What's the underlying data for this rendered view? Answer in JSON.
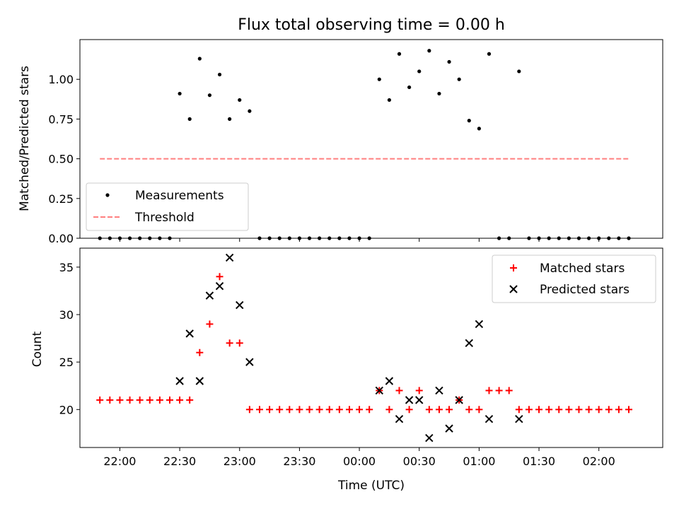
{
  "chart_data": [
    {
      "type": "scatter",
      "title": "Flux total observing time = 0.00 h",
      "xlabel": "",
      "ylabel": "Matched/Predicted stars",
      "ylim": [
        0.0,
        1.25
      ],
      "yticks": [
        0.0,
        0.25,
        0.5,
        0.75,
        1.0
      ],
      "ytick_labels": [
        "0.00",
        "0.25",
        "0.50",
        "0.75",
        "1.00"
      ],
      "legend_position": "lower-left",
      "threshold": {
        "name": "Threshold",
        "value": 0.5,
        "color": "#ff7f7f",
        "x_start": "21:50",
        "x_end": "02:15"
      },
      "series": [
        {
          "name": "Measurements",
          "color": "#000000",
          "x": [
            "21:50",
            "21:55",
            "22:00",
            "22:05",
            "22:10",
            "22:15",
            "22:20",
            "22:25",
            "22:30",
            "22:35",
            "22:40",
            "22:45",
            "22:50",
            "22:55",
            "23:00",
            "23:05",
            "23:10",
            "23:15",
            "23:20",
            "23:25",
            "23:30",
            "23:35",
            "23:40",
            "23:45",
            "23:50",
            "23:55",
            "00:00",
            "00:05",
            "00:10",
            "00:15",
            "00:20",
            "00:25",
            "00:30",
            "00:35",
            "00:40",
            "00:45",
            "00:50",
            "00:55",
            "01:00",
            "01:05",
            "01:10",
            "01:15",
            "01:20",
            "01:25",
            "01:30",
            "01:35",
            "01:40",
            "01:45",
            "01:50",
            "01:55",
            "02:00",
            "02:05",
            "02:10",
            "02:15"
          ],
          "y": [
            0,
            0,
            0,
            0,
            0,
            0,
            0,
            0,
            0.91,
            0.75,
            1.13,
            0.9,
            1.03,
            0.75,
            0.87,
            0.8,
            0,
            0,
            0,
            0,
            0,
            0,
            0,
            0,
            0,
            0,
            0,
            0,
            1.0,
            0.87,
            1.16,
            0.95,
            1.05,
            1.18,
            0.91,
            1.11,
            1.0,
            0.74,
            0.69,
            1.16,
            0,
            0,
            1.05,
            0,
            0,
            0,
            0,
            0,
            0,
            0,
            0,
            0,
            0,
            0
          ]
        }
      ]
    },
    {
      "type": "scatter",
      "title": "",
      "xlabel": "Time (UTC)",
      "ylabel": "Count",
      "ylim": [
        16,
        37
      ],
      "yticks": [
        20,
        25,
        30,
        35
      ],
      "ytick_labels": [
        "20",
        "25",
        "30",
        "35"
      ],
      "xlim": [
        "21:40",
        "02:32"
      ],
      "xticks": [
        "22:00",
        "22:30",
        "23:00",
        "23:30",
        "00:00",
        "00:30",
        "01:00",
        "01:30",
        "02:00"
      ],
      "xtick_labels": [
        "22:00",
        "22:30",
        "23:00",
        "23:30",
        "00:00",
        "00:30",
        "01:00",
        "01:30",
        "02:00"
      ],
      "legend_position": "top-right",
      "series": [
        {
          "name": "Matched stars",
          "color": "#ff0000",
          "marker": "+",
          "x": [
            "21:50",
            "21:55",
            "22:00",
            "22:05",
            "22:10",
            "22:15",
            "22:20",
            "22:25",
            "22:30",
            "22:35",
            "22:40",
            "22:45",
            "22:50",
            "22:55",
            "23:00",
            "23:05",
            "23:10",
            "23:15",
            "23:20",
            "23:25",
            "23:30",
            "23:35",
            "23:40",
            "23:45",
            "23:50",
            "23:55",
            "00:00",
            "00:05",
            "00:10",
            "00:15",
            "00:20",
            "00:25",
            "00:30",
            "00:35",
            "00:40",
            "00:45",
            "00:50",
            "00:55",
            "01:00",
            "01:05",
            "01:10",
            "01:15",
            "01:20",
            "01:25",
            "01:30",
            "01:35",
            "01:40",
            "01:45",
            "01:50",
            "01:55",
            "02:00",
            "02:05",
            "02:10",
            "02:15"
          ],
          "y": [
            21,
            21,
            21,
            21,
            21,
            21,
            21,
            21,
            21,
            21,
            26,
            29,
            34,
            27,
            27,
            20,
            20,
            20,
            20,
            20,
            20,
            20,
            20,
            20,
            20,
            20,
            20,
            20,
            22,
            20,
            22,
            20,
            22,
            20,
            20,
            20,
            21,
            20,
            20,
            22,
            22,
            22,
            20,
            20,
            20,
            20,
            20,
            20,
            20,
            20,
            20,
            20,
            20,
            20
          ]
        },
        {
          "name": "Predicted stars",
          "color": "#000000",
          "marker": "x",
          "x": [
            "22:30",
            "22:35",
            "22:40",
            "22:45",
            "22:50",
            "22:55",
            "23:00",
            "23:05",
            "00:10",
            "00:15",
            "00:20",
            "00:25",
            "00:30",
            "00:35",
            "00:40",
            "00:45",
            "00:50",
            "00:55",
            "01:00",
            "01:05",
            "01:20"
          ],
          "y": [
            23,
            28,
            23,
            32,
            33,
            36,
            31,
            25,
            22,
            23,
            19,
            21,
            21,
            17,
            22,
            18,
            21,
            27,
            29,
            19,
            19
          ]
        }
      ]
    }
  ]
}
